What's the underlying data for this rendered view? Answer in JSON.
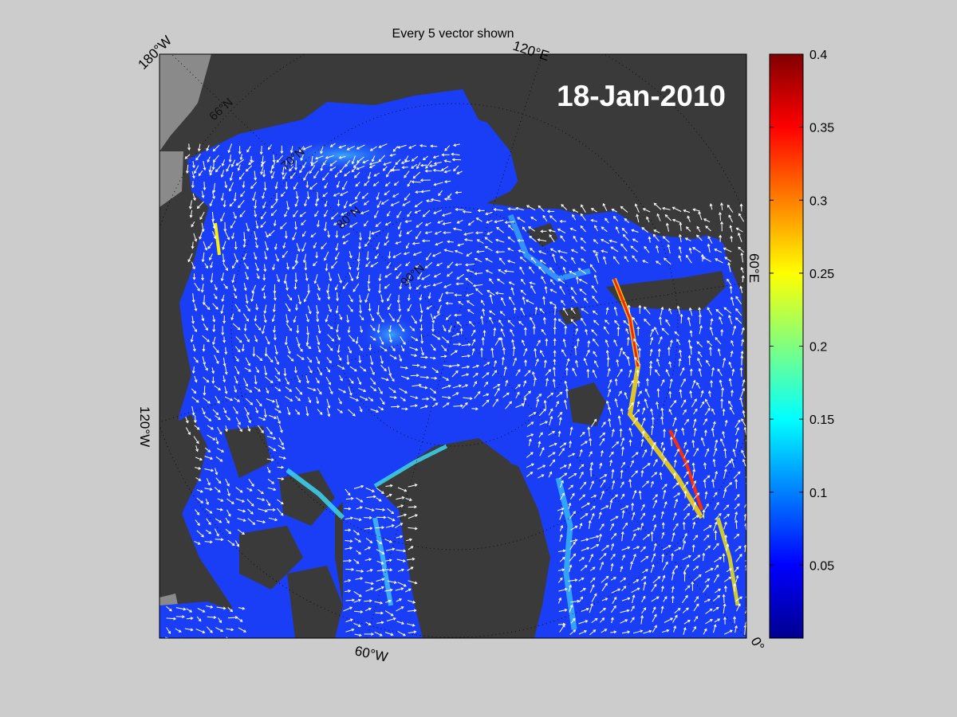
{
  "title": "Every 5 vector shown",
  "date_label": "18-Jan-2010",
  "longitude_labels": [
    {
      "id": "lon-180w",
      "text": "180°W"
    },
    {
      "id": "lon-120e",
      "text": "120°E"
    },
    {
      "id": "lon-60e",
      "text": "60°E"
    },
    {
      "id": "lon-0",
      "text": "0°"
    },
    {
      "id": "lon-60w",
      "text": "60°W"
    },
    {
      "id": "lon-120w",
      "text": "120°W"
    }
  ],
  "latitude_labels": [
    "66°N",
    "70°N",
    "80°N",
    "90°N"
  ],
  "colorbar": {
    "colormap": "jet",
    "min": 0,
    "max": 0.4,
    "ticks": [
      0.05,
      0.1,
      0.15,
      0.2,
      0.25,
      0.3,
      0.35,
      0.4
    ]
  },
  "colors": {
    "figure_background": "#cccccc",
    "land": "#3a3a3a",
    "ocean_fill": "#8a8a8a",
    "ice_base": "#1a3ef5",
    "vectors": "#ffffff",
    "date_text": "#ffffff"
  }
}
